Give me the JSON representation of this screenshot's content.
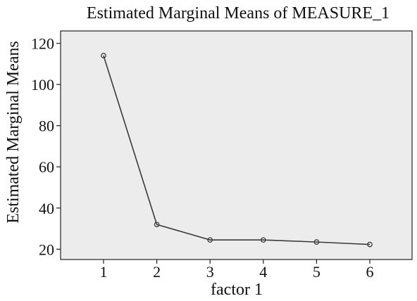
{
  "chart_data": {
    "type": "line",
    "title": "Estimated Marginal Means of MEASURE_1",
    "xlabel": "factor 1",
    "ylabel": "Estimated Marginal Means",
    "categories": [
      "1",
      "2",
      "3",
      "4",
      "5",
      "6"
    ],
    "series": [
      {
        "values": [
          114.0,
          32.0,
          24.5,
          24.5,
          23.5,
          22.3
        ]
      }
    ],
    "y_ticks": [
      "20",
      "40",
      "60",
      "80",
      "100",
      "120"
    ],
    "ylim": [
      15,
      126
    ],
    "grid": false,
    "legend": "none",
    "colors": {
      "plot_background": "#ececec",
      "line": "#3a3a3a",
      "marker": "#3a3a3a",
      "frame": "#222222"
    }
  }
}
